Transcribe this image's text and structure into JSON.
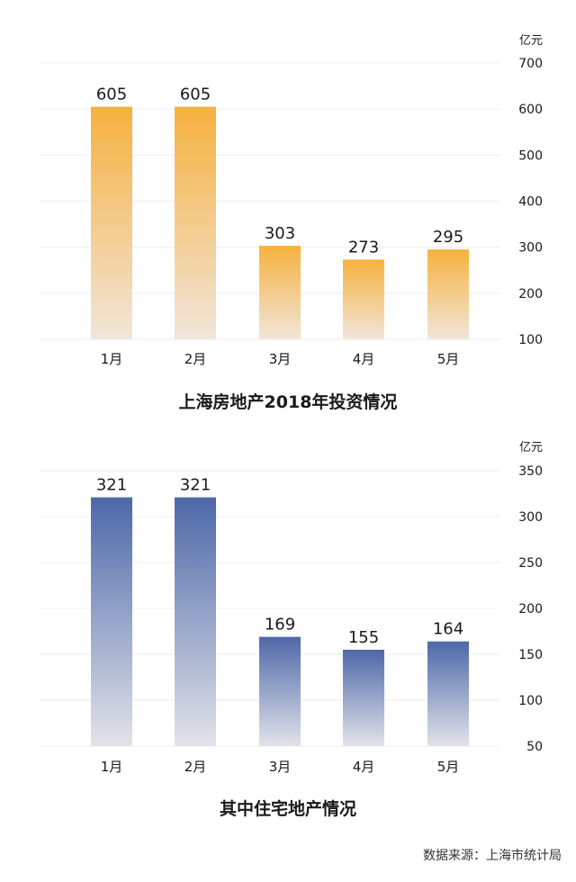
{
  "colors": {
    "chart1_bar_top": "#F6B13E",
    "chart1_bar_bottom": "#F1E6DA",
    "chart2_bar_top": "#4D68A8",
    "chart2_bar_bottom": "#E2E3EA",
    "grid": "#EDEDED",
    "text": "#1A1A1A"
  },
  "chart_data": [
    {
      "type": "bar",
      "title": "上海房地产2018年投资情况",
      "unit": "亿元",
      "categories": [
        "1月",
        "2月",
        "3月",
        "4月",
        "5月"
      ],
      "values": [
        605,
        605,
        303,
        273,
        295
      ],
      "value_labels": [
        "605",
        "605",
        "303",
        "273",
        "295"
      ],
      "ylim": [
        100,
        700
      ],
      "yticks": [
        "100",
        "200",
        "300",
        "400",
        "500",
        "600",
        "700"
      ],
      "grid": true
    },
    {
      "type": "bar",
      "title": "其中住宅地产情况",
      "unit": "亿元",
      "categories": [
        "1月",
        "2月",
        "3月",
        "4月",
        "5月"
      ],
      "values": [
        321,
        321,
        169,
        155,
        164
      ],
      "value_labels": [
        "321",
        "321",
        "169",
        "155",
        "164"
      ],
      "ylim": [
        50,
        350
      ],
      "yticks": [
        "50",
        "100",
        "150",
        "200",
        "250",
        "300",
        "350"
      ],
      "grid": true
    }
  ],
  "source": "数据来源：上海市统计局"
}
